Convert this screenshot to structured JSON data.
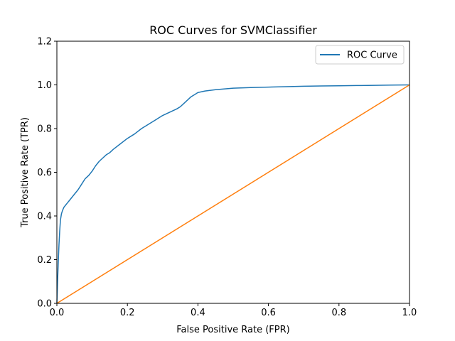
{
  "chart_data": {
    "type": "line",
    "title": "ROC Curves for SVMClassifier",
    "xlabel": "False Positive Rate (FPR)",
    "ylabel": "True Positive Rate (TPR)",
    "xlim": [
      0.0,
      1.0
    ],
    "ylim": [
      0.0,
      1.2
    ],
    "x_ticks": [
      "0.0",
      "0.2",
      "0.4",
      "0.6",
      "0.8",
      "1.0"
    ],
    "y_ticks": [
      "0.0",
      "0.2",
      "0.4",
      "0.6",
      "0.8",
      "1.0",
      "1.2"
    ],
    "grid": false,
    "legend": {
      "position": "top-right",
      "entries": [
        "ROC Curve"
      ]
    },
    "series": [
      {
        "name": "ROC Curve",
        "color": "#1f77b4",
        "x": [
          0.0,
          0.002,
          0.004,
          0.006,
          0.008,
          0.01,
          0.013,
          0.016,
          0.02,
          0.025,
          0.03,
          0.035,
          0.04,
          0.05,
          0.06,
          0.07,
          0.08,
          0.09,
          0.1,
          0.11,
          0.12,
          0.13,
          0.14,
          0.15,
          0.16,
          0.18,
          0.2,
          0.22,
          0.24,
          0.26,
          0.28,
          0.3,
          0.32,
          0.34,
          0.35,
          0.36,
          0.37,
          0.38,
          0.39,
          0.4,
          0.42,
          0.45,
          0.5,
          0.55,
          0.6,
          0.65,
          0.7,
          0.75,
          0.8,
          0.85,
          0.9,
          0.95,
          1.0
        ],
        "y": [
          0.0,
          0.1,
          0.19,
          0.27,
          0.33,
          0.38,
          0.41,
          0.425,
          0.44,
          0.45,
          0.46,
          0.47,
          0.48,
          0.5,
          0.52,
          0.545,
          0.57,
          0.585,
          0.605,
          0.63,
          0.65,
          0.665,
          0.68,
          0.69,
          0.705,
          0.73,
          0.755,
          0.775,
          0.8,
          0.82,
          0.84,
          0.86,
          0.875,
          0.89,
          0.9,
          0.915,
          0.93,
          0.945,
          0.955,
          0.965,
          0.972,
          0.978,
          0.985,
          0.988,
          0.99,
          0.992,
          0.994,
          0.995,
          0.996,
          0.997,
          0.998,
          0.999,
          1.0
        ]
      },
      {
        "color": "#ff7f0e",
        "x": [
          0.0,
          1.0
        ],
        "y": [
          0.0,
          1.0
        ]
      }
    ]
  }
}
